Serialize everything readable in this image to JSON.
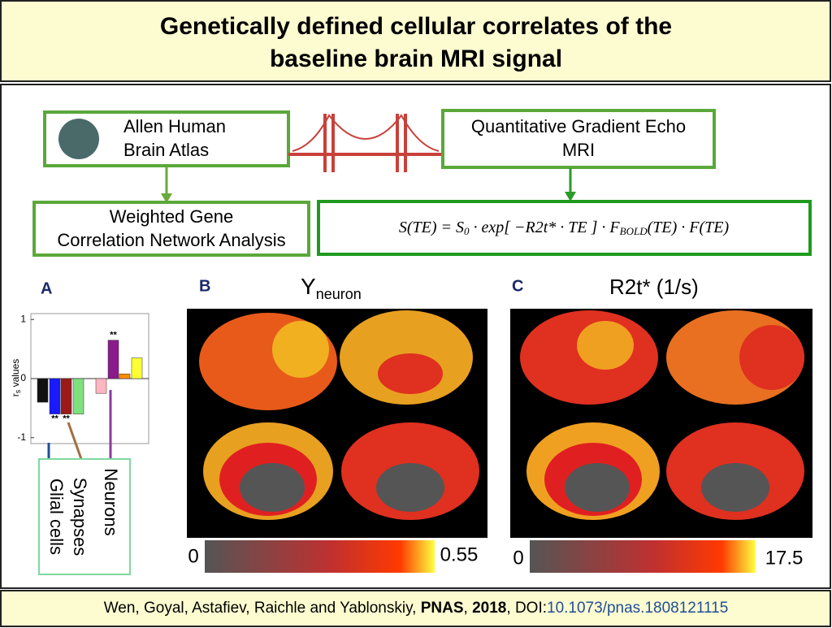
{
  "title": [
    "Genetically defined cellular correlates of the",
    "baseline brain MRI signal"
  ],
  "boxes": {
    "atlas": [
      "Allen Human",
      "Brain Atlas"
    ],
    "mri": [
      "Quantitative Gradient Echo",
      "MRI"
    ],
    "wgcna": [
      "Weighted Gene",
      "Correlation Network Analysis"
    ]
  },
  "equation": {
    "left": "S(TE) = S",
    "sub0": "0",
    "mid": " · exp[ −R2t* · TE ] · F",
    "sub1": "BOLD",
    "right": "(TE) · F(TE)"
  },
  "panel_a": {
    "label": "A",
    "ylabel": {
      "main": "r",
      "sub": "s",
      "rest": " values"
    },
    "ylim": [
      -1.1,
      1.1
    ],
    "yticks": [
      -1,
      0,
      1
    ],
    "values": [
      -0.4,
      -0.6,
      -0.6,
      -0.6,
      -0.25,
      0.65,
      0.08,
      0.35
    ],
    "colors": [
      "#111111",
      "#1a1aff",
      "#9a1a1a",
      "#7fe07f",
      "#ffb6c1",
      "#8b1a8b",
      "#ff8c00",
      "#ffff33"
    ],
    "significance": {
      "1": "**",
      "2": "**",
      "5": "**"
    },
    "legend": [
      "Glial cells",
      "Synapses",
      "Neurons"
    ]
  },
  "panel_b": {
    "label": "B",
    "title": "Y",
    "title_sub": "neuron",
    "cbar": [
      "0",
      "0.55"
    ]
  },
  "panel_c": {
    "label": "C",
    "title": "R2t* (1/s)",
    "cbar": [
      "0",
      "17.5"
    ]
  },
  "footer": [
    "Wen, Goyal, Astafiev, Raichle and Yablonskiy, ",
    "PNAS",
    ", ",
    "2018",
    ", DOI:",
    "10.1073/pnas.1808121115"
  ]
}
